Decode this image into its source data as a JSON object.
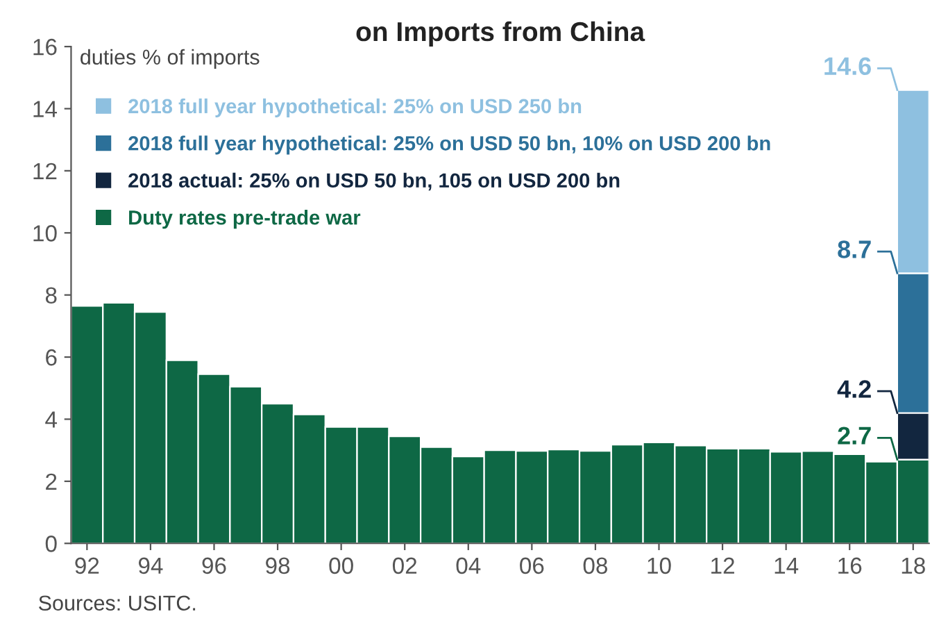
{
  "chart_data": {
    "type": "bar",
    "stacked": true,
    "title": "on Imports from China",
    "ylabel": "duties % of imports",
    "categories": [
      "92",
      null,
      "94",
      null,
      "96",
      null,
      "98",
      null,
      "00",
      null,
      "02",
      null,
      "04",
      null,
      "06",
      null,
      "08",
      null,
      "10",
      null,
      "12",
      null,
      "14",
      null,
      "16",
      null,
      "18"
    ],
    "series": [
      {
        "name": "Duty rates pre-trade war",
        "color": "#0e6845",
        "values": [
          7.65,
          7.75,
          7.45,
          5.9,
          5.45,
          5.05,
          4.5,
          4.15,
          3.75,
          3.75,
          3.45,
          3.1,
          2.8,
          3.0,
          2.98,
          3.02,
          2.98,
          3.18,
          3.25,
          3.15,
          3.05,
          3.05,
          2.95,
          2.97,
          2.87,
          2.63,
          2.7
        ]
      },
      {
        "name": "2018 actual: 25% on USD 50 bn, 105 on USD 200 bn",
        "color": "#12263f",
        "values": [
          null,
          null,
          null,
          null,
          null,
          null,
          null,
          null,
          null,
          null,
          null,
          null,
          null,
          null,
          null,
          null,
          null,
          null,
          null,
          null,
          null,
          null,
          null,
          null,
          null,
          null,
          1.5
        ]
      },
      {
        "name": "2018 full year hypothetical: 25% on USD 50 bn, 10% on USD 200 bn",
        "color": "#2c7099",
        "values": [
          null,
          null,
          null,
          null,
          null,
          null,
          null,
          null,
          null,
          null,
          null,
          null,
          null,
          null,
          null,
          null,
          null,
          null,
          null,
          null,
          null,
          null,
          null,
          null,
          null,
          null,
          4.5
        ]
      },
      {
        "name": "2018 full year hypothetical: 25% on USD 250 bn",
        "color": "#8ec0e0",
        "values": [
          null,
          null,
          null,
          null,
          null,
          null,
          null,
          null,
          null,
          null,
          null,
          null,
          null,
          null,
          null,
          null,
          null,
          null,
          null,
          null,
          null,
          null,
          null,
          null,
          null,
          null,
          5.9
        ]
      }
    ],
    "annotations": [
      {
        "text": "2.7",
        "x": "18",
        "y": 2.7
      },
      {
        "text": "4.2",
        "x": "18",
        "y": 4.2
      },
      {
        "text": "8.7",
        "x": "18",
        "y": 8.7
      },
      {
        "text": "14.6",
        "x": "18",
        "y": 14.6
      },
      "Sources: USITC."
    ],
    "ylim": [
      0,
      16
    ],
    "yticks": [
      0,
      2,
      4,
      6,
      8,
      10,
      12,
      14,
      16
    ],
    "grid": false,
    "legend": "top left",
    "marker": "square"
  }
}
